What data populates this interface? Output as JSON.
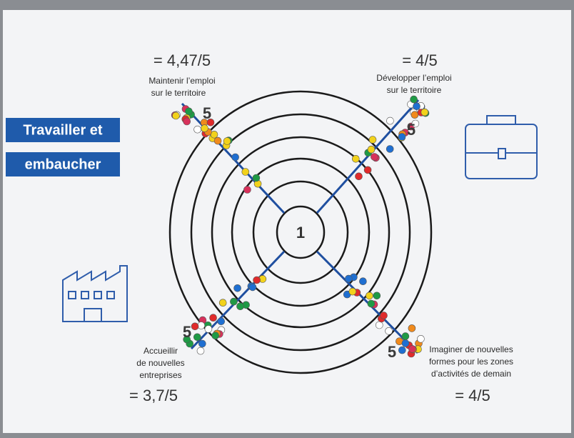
{
  "poster": {
    "title_lines": [
      "Travailler et",
      "embaucher"
    ],
    "center_label": "1",
    "quadrants": [
      {
        "score": "= 4,47/5",
        "label_lines": [
          "Maintenir l’emploi",
          "sur le territoire"
        ],
        "max_label": "5"
      },
      {
        "score": "= 4/5",
        "label_lines": [
          "Développer l’emploi",
          "sur le territoire"
        ],
        "max_label": "5"
      },
      {
        "score": "= 3,7/5",
        "label_lines": [
          "Accueillir",
          "de nouvelles",
          "entreprises"
        ],
        "max_label": "5"
      },
      {
        "score": "= 4/5",
        "label_lines": [
          "Imaginer de nouvelles",
          "formes pour les zones",
          "d’activités de demain"
        ],
        "max_label": "5"
      }
    ]
  }
}
